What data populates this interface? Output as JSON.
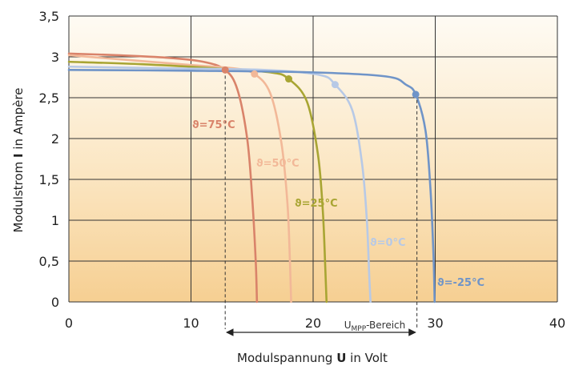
{
  "chart_data": {
    "type": "line",
    "xlabel_prefix": "Modulspannung ",
    "xlabel_bold": "U",
    "xlabel_suffix": " in Volt",
    "ylabel_prefix": "Modulstrom ",
    "ylabel_bold": "I",
    "ylabel_suffix": " in Ampère",
    "xlim": [
      0,
      40
    ],
    "ylim": [
      0,
      3.5
    ],
    "x_ticks": [
      "0",
      "10",
      "20",
      "30",
      "40"
    ],
    "y_ticks": [
      "0",
      "0,5",
      "1",
      "1,5",
      "2",
      "2,5",
      "3",
      "3,5"
    ],
    "grid": true,
    "mpp_range_label_main": "U",
    "mpp_range_label_sub": "MPP",
    "mpp_range_label_suffix": "-Bereich",
    "mpp_range": [
      12.8,
      28.5
    ],
    "series": [
      {
        "name": "ϑ=75°C",
        "color": "#d9836a",
        "mpp": [
          12.8,
          2.84
        ],
        "points": [
          [
            0,
            3.04
          ],
          [
            4,
            3.02
          ],
          [
            8,
            2.99
          ],
          [
            11,
            2.94
          ],
          [
            12.8,
            2.84
          ],
          [
            13.8,
            2.6
          ],
          [
            14.6,
            2.0
          ],
          [
            15.0,
            1.3
          ],
          [
            15.3,
            0.5
          ],
          [
            15.4,
            0
          ]
        ]
      },
      {
        "name": "ϑ=50°C",
        "color": "#f2b898",
        "mpp": [
          15.2,
          2.79
        ],
        "points": [
          [
            0,
            3.02
          ],
          [
            5,
            2.96
          ],
          [
            10,
            2.9
          ],
          [
            13.5,
            2.86
          ],
          [
            15.2,
            2.79
          ],
          [
            16.5,
            2.55
          ],
          [
            17.4,
            1.95
          ],
          [
            17.9,
            1.2
          ],
          [
            18.1,
            0.5
          ],
          [
            18.2,
            0
          ]
        ]
      },
      {
        "name": "ϑ=25°C",
        "color": "#a8a533",
        "mpp": [
          18.0,
          2.73
        ],
        "points": [
          [
            0,
            2.94
          ],
          [
            6,
            2.91
          ],
          [
            12,
            2.86
          ],
          [
            16.5,
            2.81
          ],
          [
            18.0,
            2.73
          ],
          [
            19.5,
            2.45
          ],
          [
            20.4,
            1.8
          ],
          [
            20.8,
            1.1
          ],
          [
            21.0,
            0.4
          ],
          [
            21.1,
            0
          ]
        ]
      },
      {
        "name": "ϑ=0°C",
        "color": "#b7c9e6",
        "mpp": [
          21.8,
          2.66
        ],
        "points": [
          [
            0,
            2.88
          ],
          [
            8,
            2.86
          ],
          [
            16,
            2.84
          ],
          [
            20.5,
            2.78
          ],
          [
            21.8,
            2.66
          ],
          [
            23.2,
            2.35
          ],
          [
            24.0,
            1.7
          ],
          [
            24.4,
            1.0
          ],
          [
            24.6,
            0.3
          ],
          [
            24.7,
            0
          ]
        ]
      },
      {
        "name": "ϑ=-25°C",
        "color": "#6f94c8",
        "mpp": [
          28.4,
          2.54
        ],
        "points": [
          [
            0,
            2.84
          ],
          [
            10,
            2.83
          ],
          [
            20,
            2.81
          ],
          [
            26,
            2.76
          ],
          [
            27.6,
            2.66
          ],
          [
            28.4,
            2.54
          ],
          [
            29.2,
            2.1
          ],
          [
            29.6,
            1.4
          ],
          [
            29.85,
            0.6
          ],
          [
            29.95,
            0
          ]
        ]
      }
    ]
  }
}
